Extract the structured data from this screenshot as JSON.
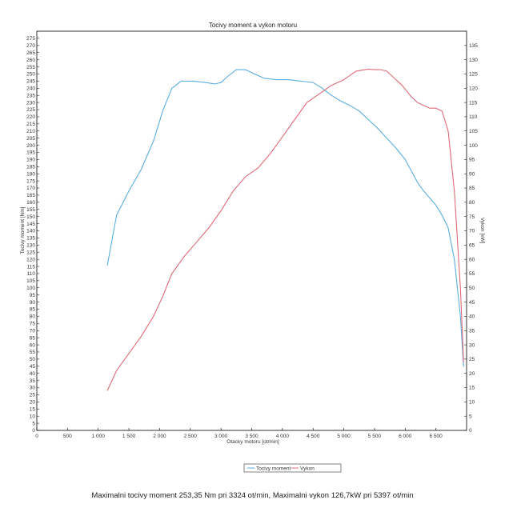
{
  "chart_data": {
    "type": "line",
    "title": "Tocivy moment a vykon motoru",
    "xlabel": "Otacky motoru [ot/min]",
    "ylabel": "Tocivy moment [Nm]",
    "y2label": "Vykon [kW]",
    "xlim": [
      0,
      7000
    ],
    "ylim": [
      0,
      280
    ],
    "y2lim": [
      0,
      140
    ],
    "x_ticks": [
      "0",
      "500",
      "1 000",
      "1 500",
      "2 000",
      "2 500",
      "3 000",
      "3 500",
      "4 000",
      "4 500",
      "5 000",
      "5 500",
      "6 000",
      "6 500"
    ],
    "y_ticks": [
      "0",
      "5",
      "10",
      "15",
      "20",
      "25",
      "30",
      "35",
      "40",
      "45",
      "50",
      "55",
      "60",
      "65",
      "70",
      "75",
      "80",
      "85",
      "90",
      "95",
      "100",
      "105",
      "110",
      "115",
      "120",
      "125",
      "130",
      "135",
      "140",
      "145",
      "150",
      "155",
      "160",
      "165",
      "170",
      "175",
      "180",
      "185",
      "190",
      "195",
      "200",
      "205",
      "210",
      "215",
      "220",
      "225",
      "230",
      "235",
      "240",
      "245",
      "250",
      "255",
      "260",
      "265",
      "270",
      "275"
    ],
    "y2_ticks": [
      "0",
      "5",
      "10",
      "15",
      "20",
      "25",
      "30",
      "35",
      "40",
      "45",
      "50",
      "55",
      "60",
      "65",
      "70",
      "75",
      "80",
      "85",
      "90",
      "95",
      "100",
      "105",
      "110",
      "115",
      "120",
      "125",
      "130",
      "135"
    ],
    "grid": false,
    "legend_position": "bottom-center",
    "series": [
      {
        "name": "Tocivy moment",
        "axis": "left",
        "color": "#5aaee0",
        "x": [
          1150,
          1300,
          1500,
          1700,
          1900,
          2050,
          2200,
          2350,
          2550,
          2750,
          2900,
          3000,
          3100,
          3250,
          3400,
          3550,
          3700,
          3900,
          4100,
          4300,
          4500,
          4650,
          4800,
          4950,
          5100,
          5250,
          5400,
          5550,
          5700,
          5850,
          6000,
          6100,
          6200,
          6300,
          6400,
          6500,
          6600,
          6700,
          6800,
          6900,
          6950
        ],
        "y": [
          116,
          151,
          168,
          183,
          203,
          224,
          240,
          245,
          245,
          244,
          243,
          244,
          248,
          253,
          253,
          250,
          247,
          246,
          246,
          245,
          244,
          240,
          235,
          231,
          228,
          224,
          218,
          212,
          205,
          198,
          190,
          182,
          174,
          168,
          163,
          158,
          151,
          142,
          120,
          80,
          45
        ]
      },
      {
        "name": "Vykon",
        "axis": "right",
        "color": "#e06a78",
        "x": [
          1150,
          1300,
          1500,
          1700,
          1900,
          2050,
          2200,
          2400,
          2600,
          2800,
          3000,
          3200,
          3400,
          3600,
          3800,
          4000,
          4200,
          4400,
          4600,
          4800,
          5000,
          5200,
          5400,
          5500,
          5600,
          5700,
          5800,
          5950,
          6100,
          6200,
          6300,
          6400,
          6500,
          6600,
          6700,
          6800,
          6900,
          6950
        ],
        "y": [
          14,
          21,
          27,
          33,
          40,
          47,
          55,
          61,
          66,
          71,
          77,
          84,
          89,
          92,
          97,
          103,
          109,
          115,
          118,
          121,
          123,
          126,
          126.7,
          126.5,
          126.5,
          126,
          124,
          121,
          117,
          115,
          114,
          113,
          113,
          112,
          105,
          84,
          50,
          24
        ]
      }
    ],
    "footer_text": "Maximalni tocivy moment 253,35 Nm pri 3324 ot/min,  Maximalni vykon 126,7kW pri 5397 ot/min"
  }
}
